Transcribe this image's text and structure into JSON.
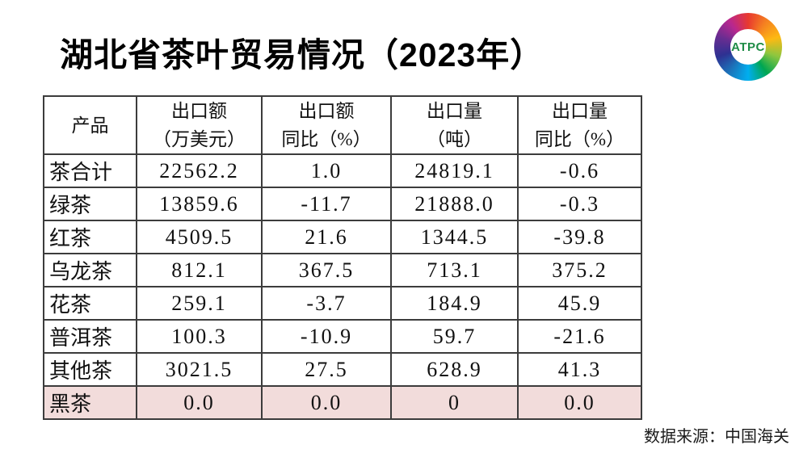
{
  "page": {
    "title": "湖北省茶叶贸易情况（2023年）",
    "source_note": "数据来源：中国海关"
  },
  "logo": {
    "text": "ATPC",
    "text_color": "#1e8c46",
    "ring_colors": [
      "#e8392f",
      "#f58220",
      "#fdb913",
      "#8dc63f",
      "#00a651",
      "#00aeef",
      "#1b75bb",
      "#2e3192",
      "#662d91",
      "#b9278f",
      "#e8392f"
    ]
  },
  "table": {
    "highlight_color": "#f2dcdb",
    "columns": [
      {
        "line1": "产品",
        "line2": ""
      },
      {
        "line1": "出口额",
        "line2": "（万美元）"
      },
      {
        "line1": "出口额",
        "line2": "同比（%）"
      },
      {
        "line1": "出口量",
        "line2": "（吨）"
      },
      {
        "line1": "出口量",
        "line2": "同比（%）"
      }
    ],
    "rows": [
      {
        "product": "茶合计",
        "values": [
          "22562.2",
          "1.0",
          "24819.1",
          "-0.6"
        ],
        "highlight": false
      },
      {
        "product": "绿茶",
        "values": [
          "13859.6",
          "-11.7",
          "21888.0",
          "-0.3"
        ],
        "highlight": false
      },
      {
        "product": "红茶",
        "values": [
          "4509.5",
          "21.6",
          "1344.5",
          "-39.8"
        ],
        "highlight": false
      },
      {
        "product": "乌龙茶",
        "values": [
          "812.1",
          "367.5",
          "713.1",
          "375.2"
        ],
        "highlight": false
      },
      {
        "product": "花茶",
        "values": [
          "259.1",
          "-3.7",
          "184.9",
          "45.9"
        ],
        "highlight": false
      },
      {
        "product": "普洱茶",
        "values": [
          "100.3",
          "-10.9",
          "59.7",
          "-21.6"
        ],
        "highlight": false
      },
      {
        "product": "其他茶",
        "values": [
          "3021.5",
          "27.5",
          "628.9",
          "41.3"
        ],
        "highlight": false
      },
      {
        "product": "黑茶",
        "values": [
          "0.0",
          "0.0",
          "0",
          "0.0"
        ],
        "highlight": true
      }
    ]
  },
  "chart_data": {
    "type": "table",
    "title": "湖北省茶叶贸易情况（2023年）",
    "columns": [
      "产品",
      "出口额（万美元）",
      "出口额同比（%）",
      "出口量（吨）",
      "出口量同比（%）"
    ],
    "rows": [
      [
        "茶合计",
        22562.2,
        1.0,
        24819.1,
        -0.6
      ],
      [
        "绿茶",
        13859.6,
        -11.7,
        21888.0,
        -0.3
      ],
      [
        "红茶",
        4509.5,
        21.6,
        1344.5,
        -39.8
      ],
      [
        "乌龙茶",
        812.1,
        367.5,
        713.1,
        375.2
      ],
      [
        "花茶",
        259.1,
        -3.7,
        184.9,
        45.9
      ],
      [
        "普洱茶",
        100.3,
        -10.9,
        59.7,
        -21.6
      ],
      [
        "其他茶",
        3021.5,
        27.5,
        628.9,
        41.3
      ],
      [
        "黑茶",
        0.0,
        0.0,
        0,
        0.0
      ]
    ],
    "highlighted_row": "黑茶",
    "source": "数据来源：中国海关"
  }
}
